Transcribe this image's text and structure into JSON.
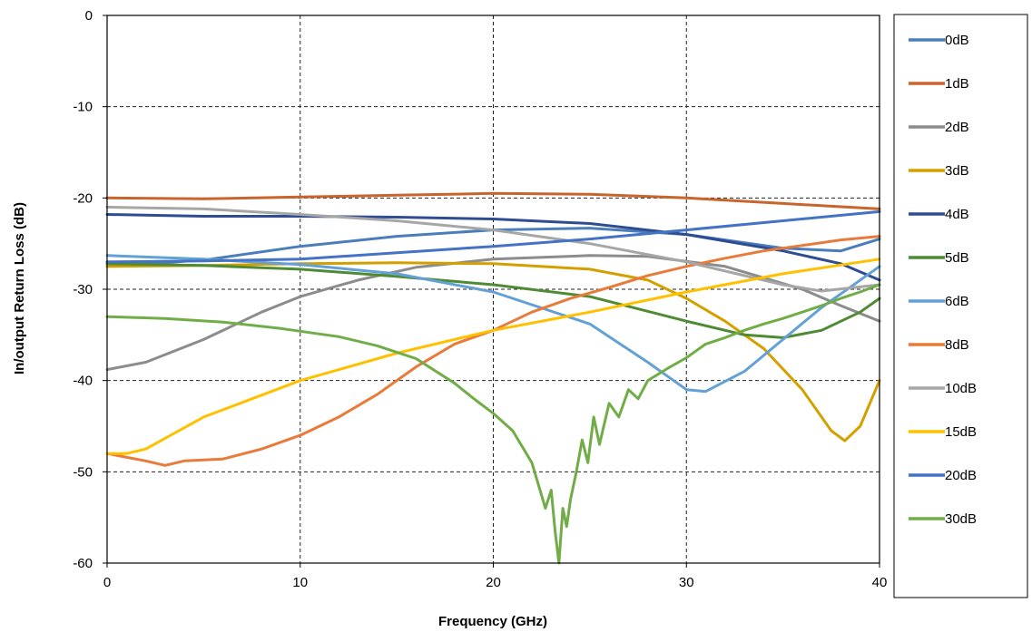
{
  "chart_data": {
    "type": "line",
    "title": "",
    "xlabel": "Frequency (GHz)",
    "ylabel": "In/output Return Loss (dB)",
    "xlim": [
      0,
      40
    ],
    "ylim": [
      -60,
      0
    ],
    "x_ticks": [
      0,
      10,
      20,
      30,
      40
    ],
    "y_ticks": [
      0,
      -10,
      -20,
      -30,
      -40,
      -50,
      -60
    ],
    "x_tick_labels": [
      "0",
      "10",
      "20",
      "30",
      "40"
    ],
    "y_tick_labels": [
      "0",
      "-10",
      "-20",
      "-30",
      "-40",
      "-50",
      "-60"
    ],
    "grid": true,
    "legend_position": "right",
    "series": [
      {
        "name": "0dB",
        "color": "#4a7ebb",
        "points": [
          [
            0,
            -27.5
          ],
          [
            5,
            -26.8
          ],
          [
            10,
            -25.3
          ],
          [
            15,
            -24.2
          ],
          [
            20,
            -23.5
          ],
          [
            25,
            -23.3
          ],
          [
            30,
            -24
          ],
          [
            35,
            -25.5
          ],
          [
            38,
            -25.8
          ],
          [
            40,
            -24.5
          ]
        ]
      },
      {
        "name": "1dB",
        "color": "#c8642c",
        "points": [
          [
            0,
            -20
          ],
          [
            5,
            -20.1
          ],
          [
            10,
            -19.9
          ],
          [
            15,
            -19.7
          ],
          [
            20,
            -19.5
          ],
          [
            25,
            -19.6
          ],
          [
            30,
            -20
          ],
          [
            35,
            -20.6
          ],
          [
            40,
            -21.2
          ]
        ]
      },
      {
        "name": "2dB",
        "color": "#8c8c8c",
        "points": [
          [
            0,
            -38.8
          ],
          [
            2,
            -38
          ],
          [
            5,
            -35.5
          ],
          [
            8,
            -32.5
          ],
          [
            10,
            -30.8
          ],
          [
            13,
            -29
          ],
          [
            16,
            -27.6
          ],
          [
            20,
            -26.7
          ],
          [
            25,
            -26.3
          ],
          [
            28,
            -26.4
          ],
          [
            32,
            -27.5
          ],
          [
            36,
            -30
          ],
          [
            38,
            -31.8
          ],
          [
            40,
            -33.5
          ]
        ]
      },
      {
        "name": "3dB",
        "color": "#d4a000",
        "points": [
          [
            0,
            -27.5
          ],
          [
            5,
            -27.4
          ],
          [
            10,
            -27.2
          ],
          [
            15,
            -27.1
          ],
          [
            20,
            -27.2
          ],
          [
            25,
            -27.8
          ],
          [
            28,
            -29
          ],
          [
            30,
            -31
          ],
          [
            32,
            -33.5
          ],
          [
            34,
            -36.5
          ],
          [
            36,
            -41
          ],
          [
            37.5,
            -45.5
          ],
          [
            38.2,
            -46.6
          ],
          [
            39,
            -45
          ],
          [
            40,
            -40
          ]
        ]
      },
      {
        "name": "4dB",
        "color": "#2e4c91",
        "points": [
          [
            0,
            -21.8
          ],
          [
            5,
            -22
          ],
          [
            10,
            -22
          ],
          [
            15,
            -22.1
          ],
          [
            20,
            -22.3
          ],
          [
            25,
            -22.8
          ],
          [
            30,
            -24
          ],
          [
            35,
            -25.8
          ],
          [
            38,
            -27.2
          ],
          [
            40,
            -29
          ]
        ]
      },
      {
        "name": "5dB",
        "color": "#4f8a35",
        "points": [
          [
            0,
            -27.2
          ],
          [
            5,
            -27.4
          ],
          [
            10,
            -27.8
          ],
          [
            15,
            -28.6
          ],
          [
            20,
            -29.5
          ],
          [
            25,
            -30.8
          ],
          [
            30,
            -33.5
          ],
          [
            33,
            -35
          ],
          [
            35,
            -35.3
          ],
          [
            37,
            -34.5
          ],
          [
            39,
            -32.5
          ],
          [
            40,
            -31
          ]
        ]
      },
      {
        "name": "6dB",
        "color": "#62a0d6",
        "points": [
          [
            0,
            -26.3
          ],
          [
            5,
            -26.7
          ],
          [
            10,
            -27.3
          ],
          [
            15,
            -28.3
          ],
          [
            20,
            -30.3
          ],
          [
            25,
            -33.8
          ],
          [
            28,
            -38
          ],
          [
            30,
            -41
          ],
          [
            31,
            -41.2
          ],
          [
            33,
            -39
          ],
          [
            35,
            -35.5
          ],
          [
            37,
            -32
          ],
          [
            40,
            -27.5
          ]
        ]
      },
      {
        "name": "8dB",
        "color": "#e87a3a",
        "points": [
          [
            0,
            -48
          ],
          [
            2,
            -48.8
          ],
          [
            3,
            -49.3
          ],
          [
            4,
            -48.8
          ],
          [
            6,
            -48.6
          ],
          [
            8,
            -47.5
          ],
          [
            10,
            -46
          ],
          [
            12,
            -44
          ],
          [
            14,
            -41.5
          ],
          [
            16,
            -38.5
          ],
          [
            18,
            -36
          ],
          [
            20,
            -34.5
          ],
          [
            22,
            -32.5
          ],
          [
            24,
            -31
          ],
          [
            26,
            -29.8
          ],
          [
            28,
            -28.5
          ],
          [
            30,
            -27.5
          ],
          [
            32,
            -26.6
          ],
          [
            34,
            -25.8
          ],
          [
            36,
            -25.2
          ],
          [
            38,
            -24.6
          ],
          [
            40,
            -24.2
          ]
        ]
      },
      {
        "name": "10dB",
        "color": "#a6a6a6",
        "points": [
          [
            0,
            -21
          ],
          [
            5,
            -21.2
          ],
          [
            10,
            -21.8
          ],
          [
            15,
            -22.5
          ],
          [
            20,
            -23.5
          ],
          [
            25,
            -25
          ],
          [
            30,
            -27
          ],
          [
            35,
            -29.5
          ],
          [
            37,
            -30.2
          ],
          [
            40,
            -29.5
          ]
        ]
      },
      {
        "name": "15dB",
        "color": "#ffc000",
        "points": [
          [
            0,
            -48
          ],
          [
            1,
            -48
          ],
          [
            2,
            -47.5
          ],
          [
            5,
            -44
          ],
          [
            10,
            -40
          ],
          [
            15,
            -37
          ],
          [
            20,
            -34.5
          ],
          [
            25,
            -32.5
          ],
          [
            30,
            -30.3
          ],
          [
            35,
            -28.3
          ],
          [
            40,
            -26.7
          ]
        ]
      },
      {
        "name": "20dB",
        "color": "#4472c4",
        "points": [
          [
            0,
            -27
          ],
          [
            5,
            -26.9
          ],
          [
            10,
            -26.7
          ],
          [
            15,
            -26
          ],
          [
            20,
            -25.3
          ],
          [
            25,
            -24.5
          ],
          [
            30,
            -23.5
          ],
          [
            35,
            -22.5
          ],
          [
            40,
            -21.5
          ]
        ]
      },
      {
        "name": "30dB",
        "color": "#70ad47",
        "points": [
          [
            0,
            -33
          ],
          [
            3,
            -33.2
          ],
          [
            6,
            -33.6
          ],
          [
            9,
            -34.3
          ],
          [
            12,
            -35.2
          ],
          [
            14,
            -36.2
          ],
          [
            16,
            -37.6
          ],
          [
            18,
            -40.3
          ],
          [
            19,
            -42
          ],
          [
            20,
            -43.6
          ],
          [
            21,
            -45.5
          ],
          [
            22,
            -49
          ],
          [
            22.7,
            -54
          ],
          [
            23,
            -52
          ],
          [
            23.2,
            -56.5
          ],
          [
            23.4,
            -60
          ],
          [
            23.6,
            -54
          ],
          [
            23.8,
            -56
          ],
          [
            24,
            -53
          ],
          [
            24.3,
            -50
          ],
          [
            24.6,
            -46.5
          ],
          [
            24.9,
            -49
          ],
          [
            25.2,
            -44
          ],
          [
            25.5,
            -47
          ],
          [
            26,
            -42.5
          ],
          [
            26.5,
            -44
          ],
          [
            27,
            -41
          ],
          [
            27.5,
            -42
          ],
          [
            28,
            -40
          ],
          [
            29,
            -38.7
          ],
          [
            30,
            -37.5
          ],
          [
            31,
            -36
          ],
          [
            32,
            -35.3
          ],
          [
            33,
            -34.5
          ],
          [
            34,
            -33.8
          ],
          [
            35,
            -33.2
          ],
          [
            36,
            -32.5
          ],
          [
            37,
            -31.8
          ],
          [
            38,
            -31
          ],
          [
            39,
            -30.3
          ],
          [
            40,
            -29.5
          ]
        ]
      }
    ]
  }
}
